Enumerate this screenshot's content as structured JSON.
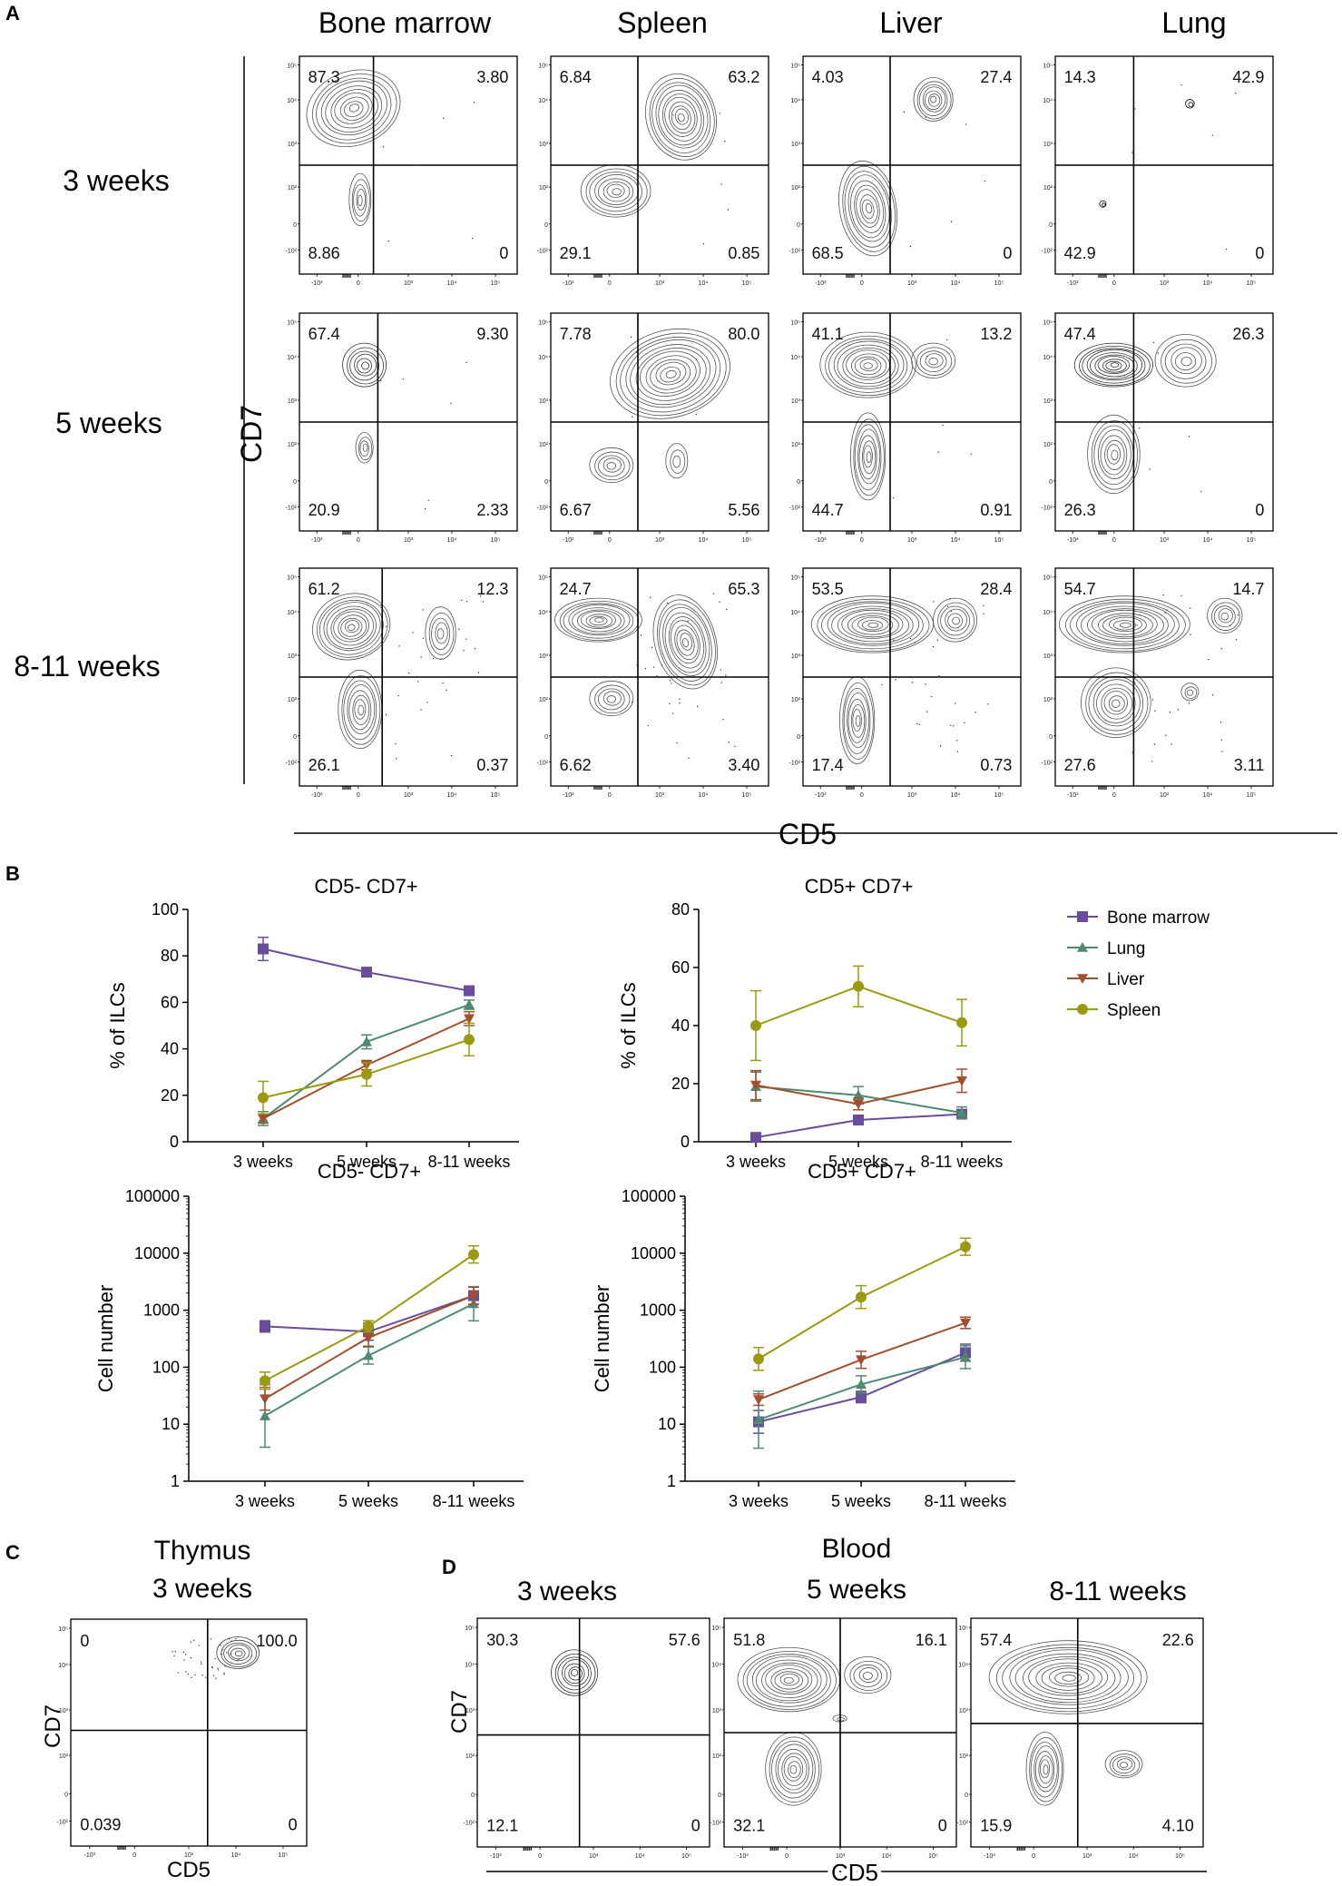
{
  "figure": {
    "panel_labels": [
      "A",
      "B",
      "C",
      "D"
    ],
    "panelA": {
      "column_titles": [
        "Bone marrow",
        "Spleen",
        "Liver",
        "Lung"
      ],
      "row_titles": [
        "3 weeks",
        "5 weeks",
        "8-11 weeks"
      ],
      "y_axis": "CD7",
      "x_axis": "CD5",
      "tick_labels_y": [
        "10⁵",
        "10⁴",
        "10³",
        "10²",
        "0",
        "-10²"
      ],
      "tick_labels_x": [
        "-10³",
        "0",
        "10³",
        "10⁴",
        "10⁵"
      ],
      "quadrant_values": [
        [
          {
            "tl": "87.3",
            "tr": "3.80",
            "bl": "8.86",
            "br": "0"
          },
          {
            "tl": "6.84",
            "tr": "63.2",
            "bl": "29.1",
            "br": "0.85"
          },
          {
            "tl": "4.03",
            "tr": "27.4",
            "bl": "68.5",
            "br": "0"
          },
          {
            "tl": "14.3",
            "tr": "42.9",
            "bl": "42.9",
            "br": "0"
          }
        ],
        [
          {
            "tl": "67.4",
            "tr": "9.30",
            "bl": "20.9",
            "br": "2.33"
          },
          {
            "tl": "7.78",
            "tr": "80.0",
            "bl": "6.67",
            "br": "5.56"
          },
          {
            "tl": "41.1",
            "tr": "13.2",
            "bl": "44.7",
            "br": "0.91"
          },
          {
            "tl": "47.4",
            "tr": "26.3",
            "bl": "26.3",
            "br": "0"
          }
        ],
        [
          {
            "tl": "61.2",
            "tr": "12.3",
            "bl": "26.1",
            "br": "0.37"
          },
          {
            "tl": "24.7",
            "tr": "65.3",
            "bl": "6.62",
            "br": "3.40"
          },
          {
            "tl": "53.5",
            "tr": "28.4",
            "bl": "17.4",
            "br": "0.73"
          },
          {
            "tl": "54.7",
            "tr": "14.7",
            "bl": "27.6",
            "br": "3.11"
          }
        ]
      ]
    },
    "panelC": {
      "title_line1": "Thymus",
      "title_line2": "3 weeks",
      "y_axis": "CD7",
      "x_axis": "CD5",
      "quadrant_values": {
        "tl": "0",
        "tr": "100.0",
        "bl": "0.039",
        "br": "0"
      }
    },
    "panelD": {
      "group_title": "Blood",
      "plot_titles": [
        "3 weeks",
        "5 weeks",
        "8-11 weeks"
      ],
      "y_axis": "CD7",
      "x_axis": "CD5",
      "quadrant_values": [
        {
          "tl": "30.3",
          "tr": "57.6",
          "bl": "12.1",
          "br": "0"
        },
        {
          "tl": "51.8",
          "tr": "16.1",
          "bl": "32.1",
          "br": "0"
        },
        {
          "tl": "57.4",
          "tr": "22.6",
          "bl": "15.9",
          "br": "4.10"
        }
      ]
    },
    "legend": {
      "entries": [
        {
          "name": "Bone marrow",
          "marker": "square",
          "color": "#6a4c9c"
        },
        {
          "name": "Lung",
          "marker": "triangle-up",
          "color": "#4f8a6e"
        },
        {
          "name": "Liver",
          "marker": "triangle-down",
          "color": "#a0502e"
        },
        {
          "name": "Spleen",
          "marker": "circle",
          "color": "#9a9a10"
        }
      ]
    }
  },
  "chart_data": [
    {
      "type": "line",
      "title": "CD5- CD7+",
      "xlabel": "",
      "ylabel": "% of ILCs",
      "scale": "linear",
      "ylim": [
        0,
        100
      ],
      "yticks": [
        "0",
        "20",
        "40",
        "60",
        "80",
        "100"
      ],
      "categories": [
        "3 weeks",
        "5 weeks",
        "8-11 weeks"
      ],
      "series": [
        {
          "name": "Bone marrow",
          "values": [
            83,
            73,
            65
          ],
          "err": [
            5,
            1,
            1
          ]
        },
        {
          "name": "Lung",
          "values": [
            10,
            43,
            59
          ],
          "err": [
            3,
            3,
            2
          ]
        },
        {
          "name": "Liver",
          "values": [
            10,
            33,
            53
          ],
          "err": [
            2,
            2,
            3
          ]
        },
        {
          "name": "Spleen",
          "values": [
            19,
            29,
            44
          ],
          "err": [
            7,
            5,
            7
          ]
        }
      ]
    },
    {
      "type": "line",
      "title": "CD5+ CD7+",
      "xlabel": "",
      "ylabel": "% of ILCs",
      "scale": "linear",
      "ylim": [
        0,
        80
      ],
      "yticks": [
        "0",
        "20",
        "40",
        "60",
        "80"
      ],
      "categories": [
        "3 weeks",
        "5 weeks",
        "8-11 weeks"
      ],
      "series": [
        {
          "name": "Bone marrow",
          "values": [
            1.5,
            7.5,
            9.5
          ],
          "err": [
            0.5,
            1,
            1
          ]
        },
        {
          "name": "Lung",
          "values": [
            19,
            16,
            10
          ],
          "err": [
            5,
            3,
            2
          ]
        },
        {
          "name": "Liver",
          "values": [
            19.5,
            13,
            21
          ],
          "err": [
            5,
            2,
            4
          ]
        },
        {
          "name": "Spleen",
          "values": [
            40,
            53.5,
            41
          ],
          "err": [
            12,
            7,
            8
          ]
        }
      ]
    },
    {
      "type": "line",
      "title": "CD5- CD7+",
      "xlabel": "",
      "ylabel": "Cell number",
      "scale": "log",
      "ylim": [
        1,
        100000
      ],
      "yticks": [
        "1",
        "10",
        "100",
        "1000",
        "10000",
        "100000"
      ],
      "categories": [
        "3 weeks",
        "5 weeks",
        "8-11 weeks"
      ],
      "series": [
        {
          "name": "Bone marrow",
          "values": [
            520,
            420,
            1800
          ],
          "err": [
            0.1,
            0.15,
            0.15
          ]
        },
        {
          "name": "Lung",
          "values": [
            14,
            160,
            1300
          ],
          "err": [
            0.55,
            0.15,
            0.3
          ]
        },
        {
          "name": "Liver",
          "values": [
            28,
            330,
            1800
          ],
          "err": [
            0.2,
            0.15,
            0.15
          ]
        },
        {
          "name": "Spleen",
          "values": [
            58,
            520,
            9500
          ],
          "err": [
            0.15,
            0.1,
            0.15
          ]
        }
      ]
    },
    {
      "type": "line",
      "title": "CD5+ CD7+",
      "xlabel": "",
      "ylabel": "Cell number",
      "scale": "log",
      "ylim": [
        1,
        100000
      ],
      "yticks": [
        "1",
        "10",
        "100",
        "1000",
        "10000",
        "100000"
      ],
      "categories": [
        "3 weeks",
        "5 weeks",
        "8-11 weeks"
      ],
      "series": [
        {
          "name": "Bone marrow",
          "values": [
            11,
            30,
            180
          ],
          "err": [
            0.2,
            0.1,
            0.15
          ]
        },
        {
          "name": "Lung",
          "values": [
            12,
            50,
            150
          ],
          "err": [
            0.5,
            0.15,
            0.2
          ]
        },
        {
          "name": "Liver",
          "values": [
            27,
            135,
            600
          ],
          "err": [
            0.1,
            0.15,
            0.1
          ]
        },
        {
          "name": "Spleen",
          "values": [
            140,
            1700,
            13000
          ],
          "err": [
            0.2,
            0.2,
            0.15
          ]
        }
      ]
    }
  ]
}
